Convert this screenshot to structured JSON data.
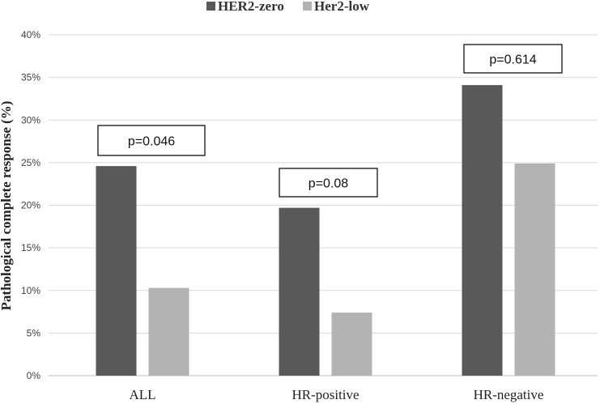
{
  "chart_data": {
    "type": "bar",
    "categories": [
      "ALL",
      "HR-positive",
      "HR-negative"
    ],
    "series": [
      {
        "name": "HER2-zero",
        "values": [
          24.6,
          19.7,
          34.1
        ],
        "color": "#595959"
      },
      {
        "name": "Her2-low",
        "values": [
          10.3,
          7.4,
          24.9
        ],
        "color": "#b3b3b3"
      }
    ],
    "ylabel": "Pathological complete response (%)",
    "xlabel": "",
    "ylim": [
      0,
      40
    ],
    "yticks": [
      "0%",
      "5%",
      "10%",
      "15%",
      "20%",
      "25%",
      "30%",
      "35%",
      "40%"
    ],
    "grid": true,
    "legend_position": "top-center",
    "annotations": [
      "p=0.046",
      "p=0.08",
      "p=0.614"
    ]
  }
}
